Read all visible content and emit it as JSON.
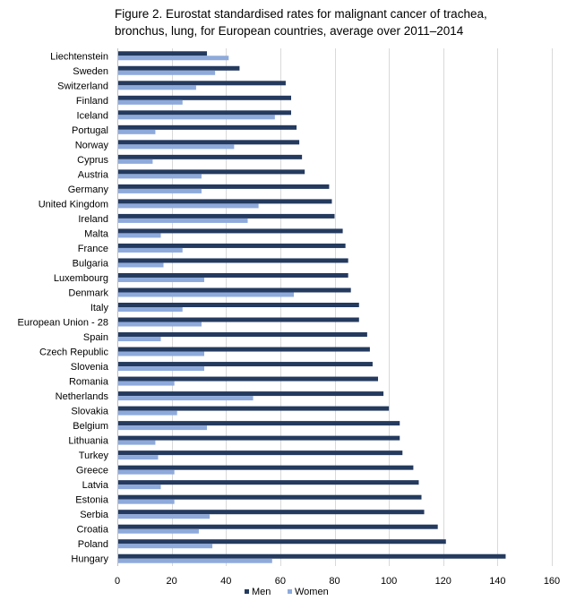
{
  "chart_data": {
    "type": "bar",
    "orientation": "horizontal",
    "title_lines": [
      "Figure 2. Eurostat standardised rates for malignant cancer of trachea,",
      "bronchus, lung, for European countries, average over 2011–2014"
    ],
    "xlabel": "",
    "ylabel": "",
    "xlim": [
      0,
      160
    ],
    "x_ticks": [
      0,
      20,
      40,
      60,
      80,
      100,
      120,
      140,
      160
    ],
    "grid": "vertical",
    "legend_position": "bottom",
    "colors": {
      "Men": "#243a5e",
      "Women": "#8eaadb"
    },
    "categories": [
      "Liechtenstein",
      "Sweden",
      "Switzerland",
      "Finland",
      "Iceland",
      "Portugal",
      "Norway",
      "Cyprus",
      "Austria",
      "Germany",
      "United Kingdom",
      "Ireland",
      "Malta",
      "France",
      "Bulgaria",
      "Luxembourg",
      "Denmark",
      "Italy",
      "European Union - 28",
      "Spain",
      "Czech Republic",
      "Slovenia",
      "Romania",
      "Netherlands",
      "Slovakia",
      "Belgium",
      "Lithuania",
      "Turkey",
      "Greece",
      "Latvia",
      "Estonia",
      "Serbia",
      "Croatia",
      "Poland",
      "Hungary"
    ],
    "series": [
      {
        "name": "Men",
        "values": [
          33,
          45,
          62,
          64,
          64,
          66,
          67,
          68,
          69,
          78,
          79,
          80,
          83,
          84,
          85,
          85,
          86,
          89,
          89,
          92,
          93,
          94,
          96,
          98,
          100,
          104,
          104,
          105,
          109,
          111,
          112,
          113,
          118,
          121,
          143
        ]
      },
      {
        "name": "Women",
        "values": [
          41,
          36,
          29,
          24,
          58,
          14,
          43,
          13,
          31,
          31,
          52,
          48,
          16,
          24,
          17,
          32,
          65,
          24,
          31,
          16,
          32,
          32,
          21,
          50,
          22,
          33,
          14,
          15,
          21,
          16,
          21,
          34,
          30,
          35,
          57
        ]
      }
    ]
  }
}
